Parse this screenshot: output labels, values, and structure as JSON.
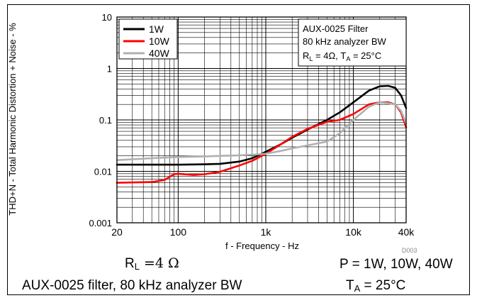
{
  "chart_data": {
    "type": "line",
    "title": "",
    "xlabel": "f - Frequency - Hz",
    "ylabel": "THD+N - Total Harmonic Distortion + Noise - %",
    "xscale": "log",
    "yscale": "log",
    "xlim": [
      20,
      40000
    ],
    "ylim": [
      0.001,
      10
    ],
    "grid": true,
    "x_ticks": [
      {
        "v": 20,
        "label": "20"
      },
      {
        "v": 100,
        "label": "100"
      },
      {
        "v": 1000,
        "label": "1k"
      },
      {
        "v": 10000,
        "label": "10k"
      },
      {
        "v": 40000,
        "label": "40k"
      }
    ],
    "y_ticks": [
      {
        "v": 0.001,
        "label": "0.001"
      },
      {
        "v": 0.01,
        "label": "0.01"
      },
      {
        "v": 0.1,
        "label": "0.1"
      },
      {
        "v": 1,
        "label": "1"
      },
      {
        "v": 10,
        "label": "10"
      }
    ],
    "legend": {
      "placement": "top-left"
    },
    "series": [
      {
        "name": "1W",
        "color": "#000000",
        "x": [
          20,
          50,
          100,
          200,
          300,
          500,
          700,
          1000,
          1500,
          2000,
          3000,
          5000,
          7000,
          10000,
          15000,
          20000,
          25000,
          30000,
          35000,
          40000
        ],
        "values": [
          0.0135,
          0.0135,
          0.0135,
          0.0137,
          0.014,
          0.0155,
          0.018,
          0.024,
          0.034,
          0.045,
          0.065,
          0.1,
          0.14,
          0.22,
          0.37,
          0.45,
          0.46,
          0.42,
          0.3,
          0.17
        ]
      },
      {
        "name": "10W",
        "color": "#ff0000",
        "x": [
          20,
          50,
          70,
          90,
          100,
          150,
          200,
          300,
          500,
          700,
          1000,
          1500,
          2000,
          3000,
          5000,
          7000,
          10000,
          15000,
          20000,
          25000,
          30000,
          35000,
          40000
        ],
        "values": [
          0.006,
          0.0062,
          0.0068,
          0.0088,
          0.009,
          0.0085,
          0.0088,
          0.0098,
          0.013,
          0.016,
          0.022,
          0.034,
          0.047,
          0.067,
          0.092,
          0.1,
          0.13,
          0.2,
          0.22,
          0.22,
          0.2,
          0.14,
          0.072
        ]
      },
      {
        "name": "40W",
        "color": "#b0b0b0",
        "x": [
          20,
          50,
          100,
          200,
          300,
          500,
          700,
          1000,
          1500,
          2000,
          3000,
          5000,
          7000,
          10000,
          15000,
          20000,
          25000,
          30000,
          35000,
          40000
        ],
        "values": [
          0.0165,
          0.018,
          0.019,
          0.0195,
          0.02,
          0.0205,
          0.021,
          0.022,
          0.025,
          0.028,
          0.032,
          0.038,
          0.055,
          0.1,
          0.18,
          0.22,
          0.21,
          0.2,
          0.15,
          0.085
        ]
      }
    ],
    "annotation": {
      "line1": "AUX-0025 Filter",
      "line2": "80 kHz analyzer BW",
      "rl_label": "R",
      "rl_sub": "L",
      "rl_rest": " = 4Ω, T",
      "ta_sub": "A",
      "ta_rest": " = 25°C"
    },
    "code_label": "D003"
  },
  "caption": {
    "rl_prefix": "R",
    "rl_sub": "L",
    "rl_value": " =4 Ω",
    "aux": "AUX-0025 filter, 80 kHz analyzer BW",
    "power": "P = 1W, 10W, 40W",
    "ta_prefix": "T",
    "ta_sub": "A",
    "ta_value": " = 25°C"
  }
}
